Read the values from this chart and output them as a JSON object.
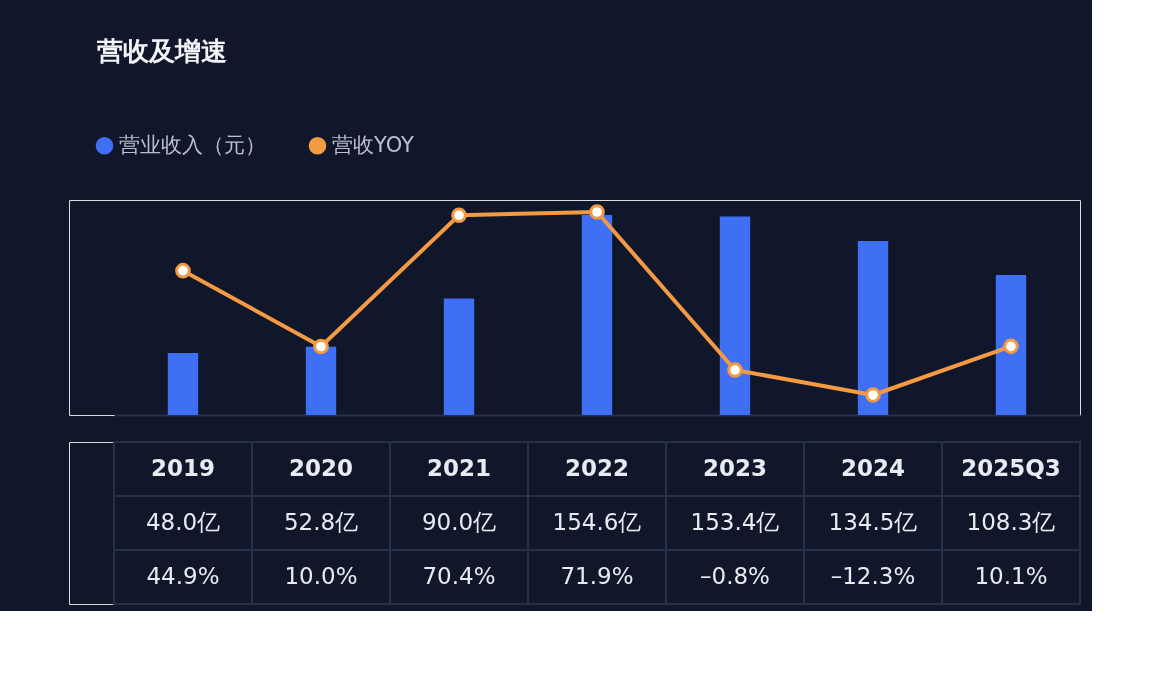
{
  "chart_data": {
    "type": "bar",
    "title": "营收及增速",
    "categories": [
      "2019",
      "2020",
      "2021",
      "2022",
      "2023",
      "2024",
      "2025Q3"
    ],
    "series": [
      {
        "name": "营业收入（元）",
        "color": "#3f6ff5",
        "values": [
          48.0,
          52.8,
          90.0,
          154.6,
          153.4,
          134.5,
          108.3
        ],
        "value_labels": [
          "48.0亿",
          "52.8亿",
          "90.0亿",
          "154.6亿",
          "153.4亿",
          "134.5亿",
          "108.3亿"
        ]
      },
      {
        "name": "营收YOY",
        "type": "line",
        "axis": "y2",
        "color": "#f39a43",
        "values": [
          44.9,
          10.0,
          70.4,
          71.9,
          -0.8,
          -12.3,
          10.1
        ],
        "value_labels": [
          "44.9%",
          "10.0%",
          "70.4%",
          "71.9%",
          "–0.8%",
          "–12.3%",
          "10.1%"
        ]
      }
    ],
    "legend": "top left",
    "tick_labels": false,
    "grid": false,
    "marker": "circle"
  }
}
